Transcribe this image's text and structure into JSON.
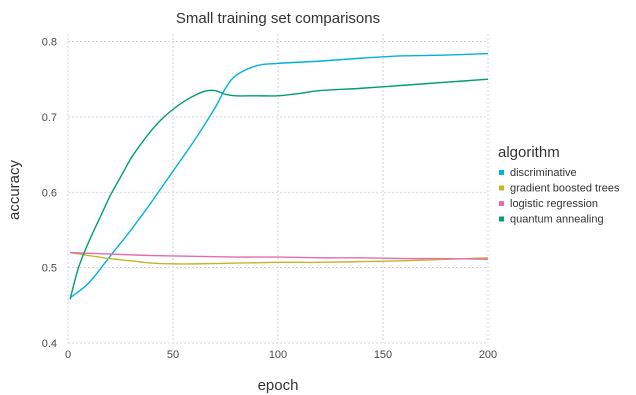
{
  "chart_data": {
    "type": "line",
    "title": "Small training set comparisons",
    "xlabel": "epoch",
    "ylabel": "accuracy",
    "xlim": [
      0,
      200
    ],
    "ylim": [
      0.4,
      0.81
    ],
    "xticks": [
      0,
      50,
      100,
      150,
      200
    ],
    "yticks": [
      0.4,
      0.5,
      0.6,
      0.7,
      0.8
    ],
    "xtick_labels": [
      "0",
      "50",
      "100",
      "150",
      "200"
    ],
    "ytick_labels": [
      "0.4",
      "0.5",
      "0.6",
      "0.7",
      "0.8"
    ],
    "grid": true,
    "legend": {
      "title": "algorithm",
      "position": "right"
    },
    "series": [
      {
        "name": "discriminative",
        "color": "#00b2e2",
        "x": [
          1,
          10,
          20,
          30,
          40,
          50,
          60,
          70,
          75,
          80,
          90,
          100,
          120,
          140,
          160,
          180,
          200
        ],
        "y": [
          0.46,
          0.48,
          0.515,
          0.55,
          0.588,
          0.628,
          0.668,
          0.712,
          0.738,
          0.755,
          0.768,
          0.771,
          0.774,
          0.778,
          0.781,
          0.782,
          0.784
        ]
      },
      {
        "name": "gradient boosted trees",
        "color": "#c8b42c",
        "x": [
          1,
          10,
          20,
          30,
          40,
          50,
          60,
          80,
          100,
          120,
          140,
          160,
          180,
          200
        ],
        "y": [
          0.52,
          0.516,
          0.512,
          0.509,
          0.506,
          0.505,
          0.505,
          0.506,
          0.507,
          0.507,
          0.508,
          0.509,
          0.511,
          0.513
        ]
      },
      {
        "name": "logistic regression",
        "color": "#e56cae",
        "x": [
          1,
          20,
          40,
          60,
          80,
          100,
          120,
          140,
          160,
          180,
          200
        ],
        "y": [
          0.52,
          0.518,
          0.516,
          0.515,
          0.514,
          0.514,
          0.513,
          0.513,
          0.512,
          0.512,
          0.511
        ]
      },
      {
        "name": "quantum annealing",
        "color": "#009e73",
        "x": [
          1,
          5,
          10,
          15,
          20,
          25,
          30,
          35,
          40,
          45,
          50,
          55,
          60,
          65,
          70,
          75,
          80,
          90,
          100,
          110,
          120,
          140,
          160,
          180,
          200
        ],
        "y": [
          0.458,
          0.5,
          0.535,
          0.565,
          0.595,
          0.62,
          0.645,
          0.665,
          0.683,
          0.698,
          0.71,
          0.72,
          0.728,
          0.734,
          0.735,
          0.73,
          0.728,
          0.728,
          0.728,
          0.731,
          0.735,
          0.738,
          0.742,
          0.746,
          0.75
        ]
      }
    ]
  }
}
